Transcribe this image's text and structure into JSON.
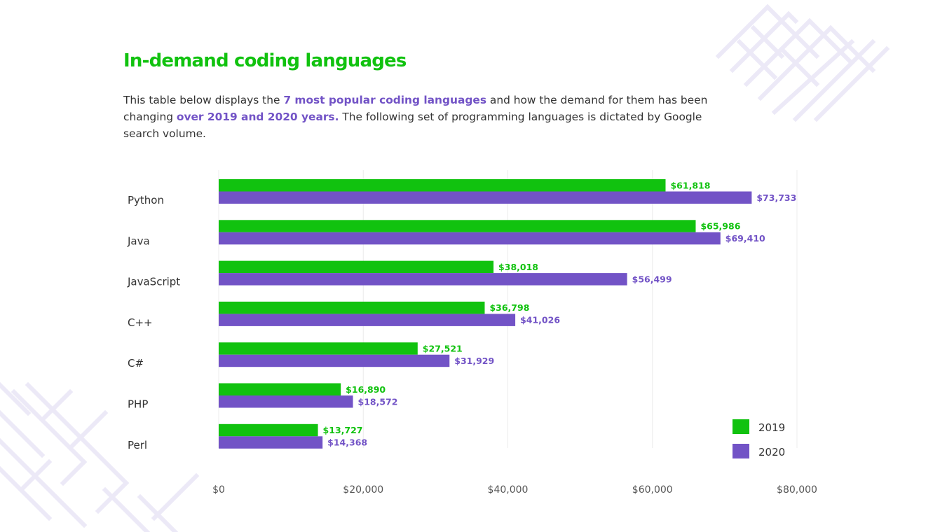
{
  "header": {
    "title": "In-demand coding languages",
    "desc_part1": "This table below displays the ",
    "desc_hl1": "7 most popular coding languages",
    "desc_part2": " and how the demand for them has been changing ",
    "desc_hl2": "over 2019 and 2020 years.",
    "desc_part3": " The following set of programming languages is dictated by Google search volume."
  },
  "colors": {
    "accent_green": "#11c20f",
    "accent_purple": "#7253c6",
    "text": "#333333",
    "grid": "#ececec"
  },
  "chart_data": {
    "type": "bar",
    "orientation": "horizontal",
    "categories": [
      "Python",
      "Java",
      "JavaScript",
      "C++",
      "C#",
      "PHP",
      "Perl"
    ],
    "series": [
      {
        "name": "2019",
        "color": "#11c20f",
        "values": [
          61818,
          65986,
          38018,
          36798,
          27521,
          16890,
          13727
        ],
        "labels": [
          "$61,818",
          "$65,986",
          "$38,018",
          "$36,798",
          "$27,521",
          "$16,890",
          "$13,727"
        ]
      },
      {
        "name": "2020",
        "color": "#7253c6",
        "values": [
          73733,
          69410,
          56499,
          41026,
          31929,
          18572,
          14368
        ],
        "labels": [
          "$73,733",
          "$69,410",
          "$56,499",
          "$41,026",
          "$31,929",
          "$18,572",
          "$14,368"
        ]
      }
    ],
    "xlim": [
      0,
      80000
    ],
    "xticks": [
      0,
      20000,
      40000,
      60000,
      80000
    ],
    "xtick_labels": [
      "$0",
      "$20,000",
      "$40,000",
      "$60,000",
      "$80,000"
    ],
    "grid": true,
    "legend_position": "bottom-right",
    "title": "",
    "xlabel": "",
    "ylabel": ""
  }
}
